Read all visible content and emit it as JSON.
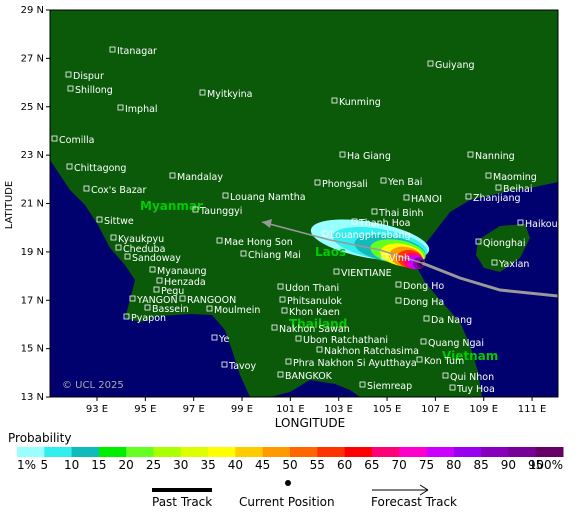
{
  "map": {
    "lat_ticks": [
      {
        "value": 29,
        "label": "29 N"
      },
      {
        "value": 27,
        "label": "27 N"
      },
      {
        "value": 25,
        "label": "25 N"
      },
      {
        "value": 23,
        "label": "23 N"
      },
      {
        "value": 21,
        "label": "21 N"
      },
      {
        "value": 19,
        "label": "19 N"
      },
      {
        "value": 17,
        "label": "17 N"
      },
      {
        "value": 15,
        "label": "15 N"
      },
      {
        "value": 13,
        "label": "13 N"
      }
    ],
    "lon_ticks": [
      {
        "value": 93,
        "label": "93 E"
      },
      {
        "value": 95,
        "label": "95 E"
      },
      {
        "value": 97,
        "label": "97 E"
      },
      {
        "value": 99,
        "label": "99 E"
      },
      {
        "value": 101,
        "label": "101 E"
      },
      {
        "value": 103,
        "label": "103 E"
      },
      {
        "value": 105,
        "label": "105 E"
      },
      {
        "value": 107,
        "label": "107 E"
      },
      {
        "value": 109,
        "label": "109 E"
      },
      {
        "value": 111,
        "label": "111 E"
      }
    ],
    "y_label": "LATITUDE",
    "x_label": "LONGITUDE",
    "copyright": "© UCL 2025",
    "countries": [
      "Myanmar",
      "Laos",
      "Thailand",
      "Vietnam"
    ],
    "cities": [
      "Itanagar",
      "Dispur",
      "Shillong",
      "Imphal",
      "Myitkyina",
      "Kunming",
      "Guiyang",
      "Comilla",
      "Chittagong",
      "Cox's Bazar",
      "Mandalay",
      "Taunggyi",
      "Louang Namtha",
      "Phongsali",
      "Ha Giang",
      "Yen Bai",
      "Nanning",
      "Maoming",
      "Beihai",
      "Zhanjiang",
      "HANOI",
      "Thai Binh",
      "Thanh Hoa",
      "Louangphrabang",
      "Sittwe",
      "Kyaukpyu",
      "Cheduba",
      "Sandoway",
      "Mae Hong Son",
      "Chiang Mai",
      "Vinh",
      "VIENTIANE",
      "Haikou",
      "Qionghai",
      "Yaxian",
      "Myanaung",
      "Henzada",
      "Pegu",
      "YANGON",
      "RANGOON",
      "Bassein",
      "Pyapon",
      "Moulmein",
      "Udon Thani",
      "Phitsanulok",
      "Khon Kaen",
      "Dong Ho",
      "Dong Ha",
      "Da Nang",
      "Nakhon Sawan",
      "Ye",
      "Ubon Ratchathani",
      "Nakhon Ratchasima",
      "Quang Ngai",
      "Kon Tum",
      "Phra Nakhon Si Ayutthaya",
      "Tavoy",
      "BANGKOK",
      "Qui Nhon",
      "Siemreap",
      "Tuy Hoa"
    ]
  },
  "legend": {
    "title": "Probability",
    "labels": [
      "1%",
      "5",
      "10",
      "15",
      "20",
      "25",
      "30",
      "35",
      "40",
      "45",
      "50",
      "55",
      "60",
      "65",
      "70",
      "75",
      "80",
      "85",
      "90",
      "95",
      "100%"
    ],
    "colors": [
      "#99ffff",
      "#33eeee",
      "#11bbbb",
      "#00ee00",
      "#66ff22",
      "#aaff00",
      "#ddff00",
      "#ffff00",
      "#ffcc00",
      "#ff9900",
      "#ff6600",
      "#ff3300",
      "#ff0000",
      "#ff0077",
      "#ff00cc",
      "#cc00ff",
      "#9900ee",
      "#8800bb",
      "#770099",
      "#660066"
    ],
    "past_track": "Past Track",
    "current_position": "Current Position",
    "forecast_track": "Forecast Track"
  }
}
